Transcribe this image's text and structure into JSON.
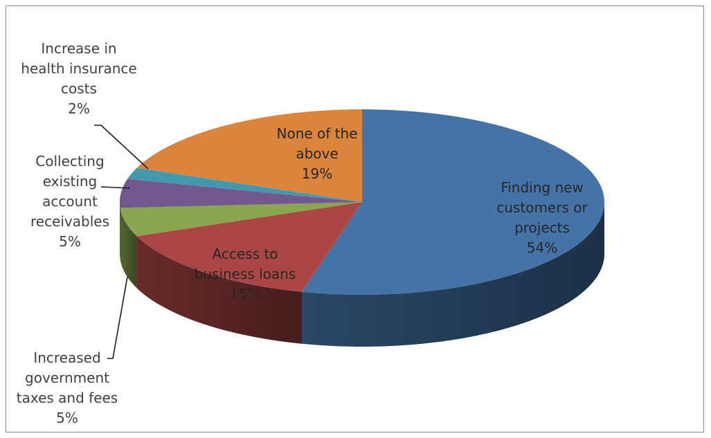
{
  "chart_data": {
    "type": "pie",
    "title": "",
    "three_d": true,
    "legend": "none",
    "start_angle_deg": 0,
    "direction": "clockwise",
    "slices": [
      {
        "label": "Finding new customers or projects",
        "value": 54,
        "value_label": "54%",
        "color": "#4572a7",
        "lines": [
          "Finding new",
          "customers or",
          "projects",
          "54%"
        ]
      },
      {
        "label": "Access to business loans",
        "value": 15,
        "value_label": "15%",
        "color": "#aa4643",
        "lines": [
          "Access to",
          "business loans",
          "15%"
        ]
      },
      {
        "label": "Increased government taxes and fees",
        "value": 5,
        "value_label": "5%",
        "color": "#89a54e",
        "lines": [
          "Increased",
          "government",
          "taxes and fees",
          "5%"
        ]
      },
      {
        "label": "Collecting existing account receivables",
        "value": 5,
        "value_label": "5%",
        "color": "#71588f",
        "lines": [
          "Collecting",
          "existing",
          "account",
          "receivables",
          "5%"
        ]
      },
      {
        "label": "Increase in health insurance costs",
        "value": 2,
        "value_label": "2%",
        "color": "#4198af",
        "lines": [
          "Increase in",
          "health insurance",
          "costs",
          "2%"
        ]
      },
      {
        "label": "None of the above",
        "value": 19,
        "value_label": "19%",
        "color": "#db843d",
        "lines": [
          "None of the",
          "above",
          "19%"
        ]
      }
    ]
  }
}
